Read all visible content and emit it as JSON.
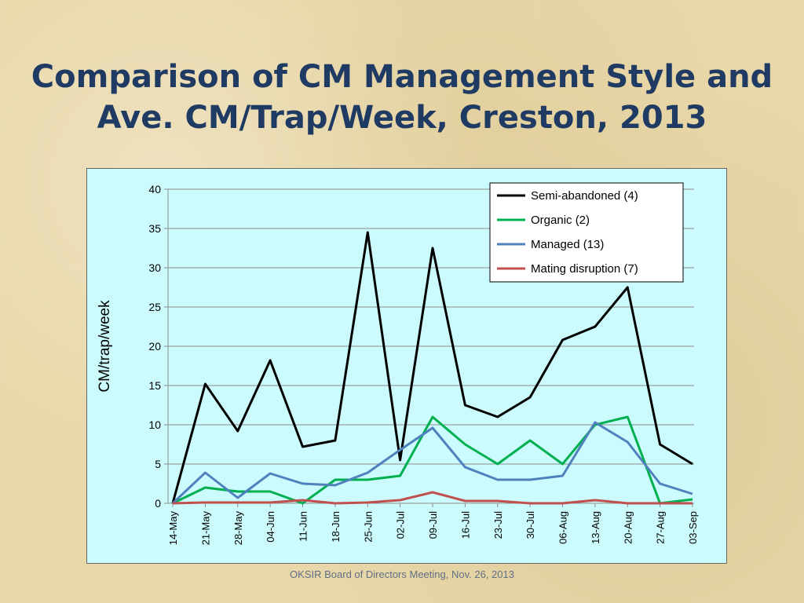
{
  "slide": {
    "title_line1": "Comparison of CM Management Style and",
    "title_line2": "Ave. CM/Trap/Week, Creston, 2013",
    "footer": "OKSIR Board of Directors Meeting, Nov. 26, 2013"
  },
  "chart_data": {
    "type": "line",
    "title": "",
    "xlabel": "",
    "ylabel": "CM/trap/week",
    "ylim": [
      0,
      40
    ],
    "yticks": [
      0,
      5,
      10,
      15,
      20,
      25,
      30,
      35,
      40
    ],
    "grid": true,
    "legend_position": "top-right",
    "categories": [
      "14-May",
      "21-May",
      "28-May",
      "04-Jun",
      "11-Jun",
      "18-Jun",
      "25-Jun",
      "02-Jul",
      "09-Jul",
      "16-Jul",
      "23-Jul",
      "30-Jul",
      "06-Aug",
      "13-Aug",
      "20-Aug",
      "27-Aug",
      "03-Sep"
    ],
    "series": [
      {
        "name": "Semi-abandoned (4)",
        "color": "#000000",
        "values": [
          0,
          15.2,
          9.2,
          18.2,
          7.2,
          8,
          34.5,
          5.5,
          32.5,
          12.5,
          11,
          13.5,
          20.8,
          22.5,
          27.5,
          7.5,
          5
        ]
      },
      {
        "name": "Organic (2)",
        "color": "#00b050",
        "values": [
          0,
          2,
          1.5,
          1.5,
          0,
          3,
          3,
          3.5,
          11,
          7.5,
          5,
          8,
          5,
          10,
          11,
          0,
          0.5
        ]
      },
      {
        "name": "Managed (13)",
        "color": "#4f81bd",
        "values": [
          0,
          3.9,
          0.7,
          3.8,
          2.5,
          2.3,
          3.9,
          6.8,
          9.6,
          4.6,
          3,
          3,
          3.5,
          10.3,
          7.8,
          2.5,
          1.2
        ]
      },
      {
        "name": "Mating disruption (7)",
        "color": "#c0504d",
        "values": [
          0,
          0.1,
          0.1,
          0.1,
          0.4,
          0,
          0.1,
          0.4,
          1.4,
          0.3,
          0.3,
          0,
          0,
          0.4,
          0,
          0,
          0
        ]
      }
    ]
  }
}
